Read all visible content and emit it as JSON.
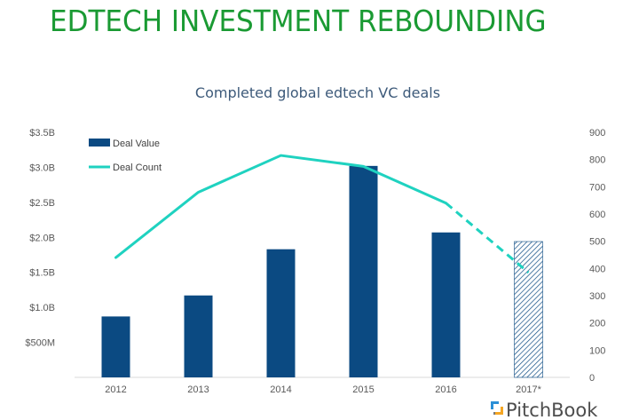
{
  "headline": "EDTECH INVESTMENT REBOUNDING",
  "brand": "PitchBook",
  "colors": {
    "headline": "#1a9a33",
    "bar": "#0b4a82",
    "line": "#1fd2c0",
    "title": "#3d5a7a"
  },
  "chart_data": {
    "type": "bar",
    "title": "Completed global edtech VC deals",
    "categories": [
      "2012",
      "2013",
      "2014",
      "2015",
      "2016",
      "2017*"
    ],
    "series": [
      {
        "name": "Deal Value",
        "type": "bar",
        "axis": "left",
        "values": [
          0.87,
          1.17,
          1.83,
          3.02,
          2.07,
          1.94
        ],
        "projected_from_index": 5
      },
      {
        "name": "Deal Count",
        "type": "line",
        "axis": "right",
        "values": [
          440,
          680,
          815,
          775,
          640,
          385
        ],
        "projected_from_index": 5
      }
    ],
    "left_axis": {
      "ylim": [
        0,
        3.5
      ],
      "ticks": [
        0.5,
        1.0,
        1.5,
        2.0,
        2.5,
        3.0,
        3.5
      ],
      "tick_labels": [
        "$500M",
        "$1.0B",
        "$1.5B",
        "$2.0B",
        "$2.5B",
        "$3.0B",
        "$3.5B"
      ]
    },
    "right_axis": {
      "ylim": [
        0,
        900
      ],
      "ticks": [
        0,
        100,
        200,
        300,
        400,
        500,
        600,
        700,
        800,
        900
      ],
      "tick_labels": [
        "0",
        "100",
        "200",
        "300",
        "400",
        "500",
        "600",
        "700",
        "800",
        "900"
      ]
    },
    "legend": [
      "Deal Value",
      "Deal Count"
    ],
    "legend_position": "top-left",
    "grid": false
  }
}
